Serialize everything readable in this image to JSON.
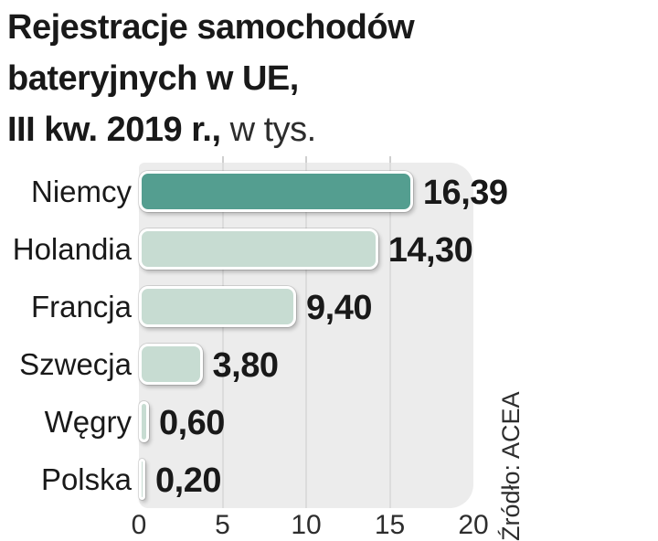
{
  "title": {
    "line1": "Rejestracje samochodów",
    "line2": "bateryjnych w UE,",
    "line3_bold": "III kw. 2019 r.,",
    "line3_regular": " w tys."
  },
  "source_label": "Źródło: ACEA",
  "chart_data": {
    "type": "bar",
    "orientation": "horizontal",
    "title": "Rejestracje samochodów bateryjnych w UE, III kw. 2019 r., w tys.",
    "categories": [
      "Niemcy",
      "Holandia",
      "Francja",
      "Szwecja",
      "Węgry",
      "Polska"
    ],
    "values": [
      16.39,
      14.3,
      9.4,
      3.8,
      0.6,
      0.2
    ],
    "value_labels": [
      "16,39",
      "14,30",
      "9,40",
      "3,80",
      "0,60",
      "0,20"
    ],
    "x_ticks": [
      "0",
      "5",
      "10",
      "15",
      "20"
    ],
    "x_tick_values": [
      0,
      5,
      10,
      15,
      20
    ],
    "xlim": [
      0,
      20
    ],
    "grid": true,
    "legend": "none",
    "unit": "tys.",
    "highlight_index": 0,
    "colors": {
      "highlight_bar": "#549e90",
      "bar": "#c7dcd2",
      "plot_background": "#ececec",
      "gridline": "#dcdcdc",
      "text": "#191919",
      "axis_text": "#2d2d2d"
    },
    "source": "Źródło: ACEA"
  }
}
